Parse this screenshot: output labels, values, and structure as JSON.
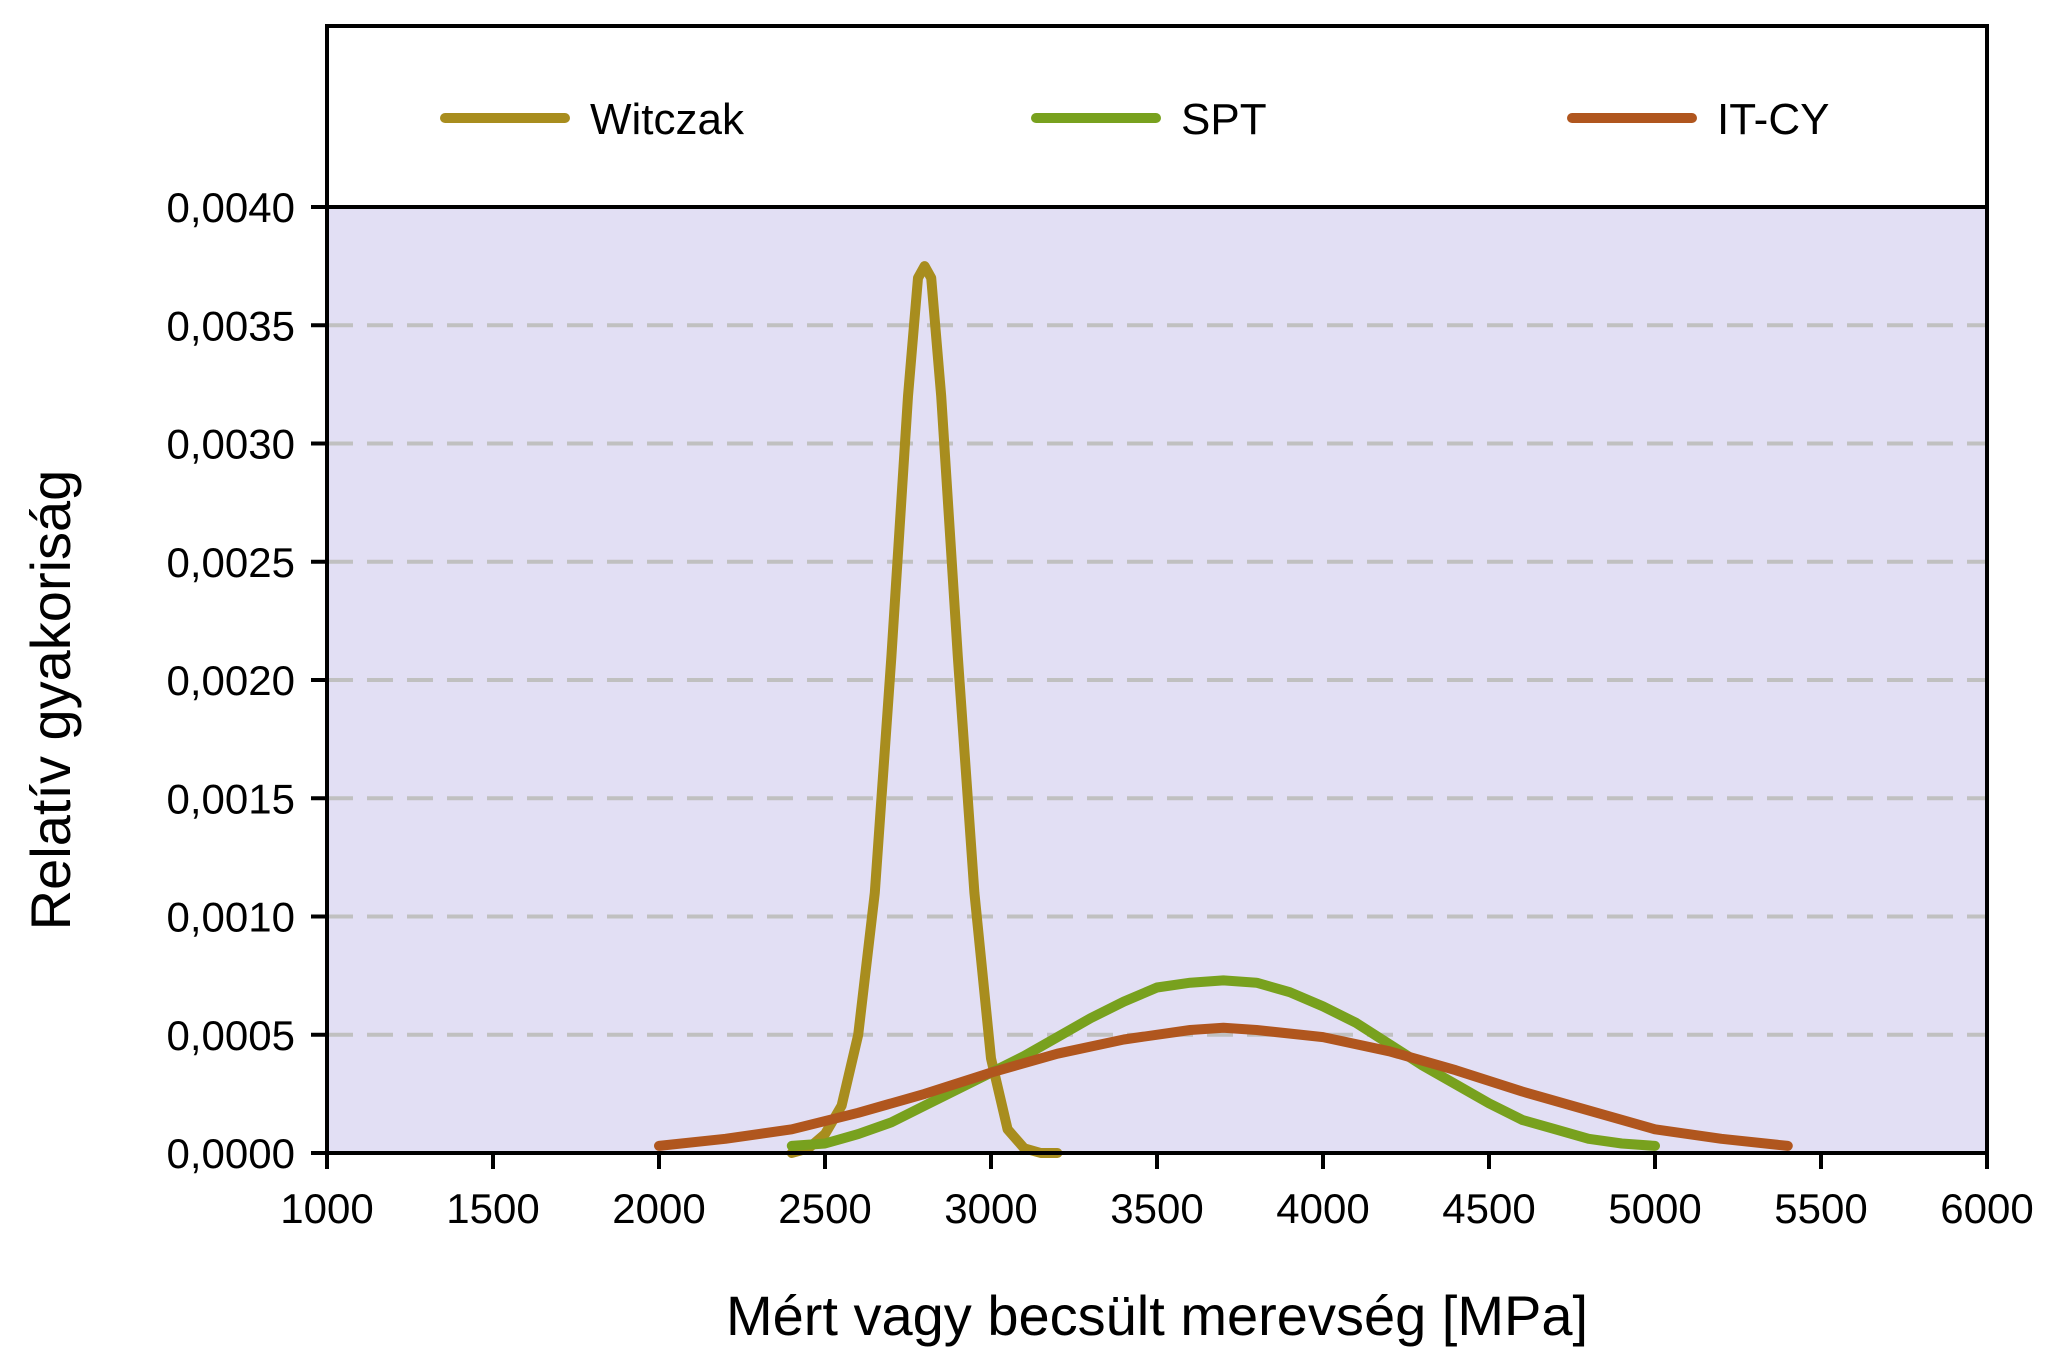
{
  "chart_data": {
    "type": "line",
    "title": "",
    "xlabel": "Mért vagy becsült merevség [MPa]",
    "ylabel": "Relatív gyakoriság",
    "xlim": [
      1000,
      6000
    ],
    "ylim": [
      0,
      0.004
    ],
    "xticks": [
      1000,
      1500,
      2000,
      2500,
      3000,
      3500,
      4000,
      4500,
      5000,
      5500,
      6000
    ],
    "xtick_labels": [
      "1000",
      "1500",
      "2000",
      "2500",
      "3000",
      "3500",
      "4000",
      "4500",
      "5000",
      "5500",
      "6000"
    ],
    "yticks": [
      0,
      0.0005,
      0.001,
      0.0015,
      0.002,
      0.0025,
      0.003,
      0.0035,
      0.004
    ],
    "ytick_labels": [
      "0,0000",
      "0,0005",
      "0,0010",
      "0,0015",
      "0,0020",
      "0,0025",
      "0,0030",
      "0,0035",
      "0,0040"
    ],
    "grid": "horizontal dashed",
    "plot_background": "#e2dff4",
    "gridline_color": "#c0c0c0",
    "legend_position": "top",
    "series": [
      {
        "name": "Witczak",
        "color": "#a88d1e",
        "x": [
          2400,
          2450,
          2500,
          2550,
          2600,
          2650,
          2700,
          2750,
          2780,
          2800,
          2820,
          2850,
          2900,
          2950,
          3000,
          3050,
          3100,
          3150,
          3200
        ],
        "y": [
          0.0,
          2e-05,
          8e-05,
          0.0002,
          0.0005,
          0.0011,
          0.0021,
          0.0032,
          0.0037,
          0.00375,
          0.0037,
          0.0032,
          0.0021,
          0.0011,
          0.0004,
          0.0001,
          2e-05,
          0.0,
          0.0
        ]
      },
      {
        "name": "SPT",
        "color": "#78a11e",
        "x": [
          2400,
          2500,
          2600,
          2700,
          2800,
          2900,
          3000,
          3100,
          3200,
          3300,
          3400,
          3500,
          3600,
          3700,
          3800,
          3900,
          4000,
          4100,
          4200,
          4300,
          4400,
          4500,
          4600,
          4700,
          4800,
          4900,
          5000
        ],
        "y": [
          3e-05,
          4e-05,
          8e-05,
          0.00013,
          0.0002,
          0.00027,
          0.00034,
          0.00041,
          0.00049,
          0.00057,
          0.00064,
          0.0007,
          0.00072,
          0.00073,
          0.00072,
          0.00068,
          0.00062,
          0.00055,
          0.00046,
          0.00037,
          0.00029,
          0.00021,
          0.00014,
          0.0001,
          6e-05,
          4e-05,
          3e-05
        ]
      },
      {
        "name": "IT-CY",
        "color": "#b0561e",
        "x": [
          2000,
          2200,
          2400,
          2600,
          2800,
          3000,
          3200,
          3400,
          3600,
          3700,
          3800,
          4000,
          4200,
          4400,
          4600,
          4800,
          5000,
          5200,
          5400
        ],
        "y": [
          3e-05,
          6e-05,
          0.0001,
          0.00017,
          0.00025,
          0.00034,
          0.00042,
          0.00048,
          0.00052,
          0.00053,
          0.00052,
          0.00049,
          0.00043,
          0.00035,
          0.00026,
          0.00018,
          0.0001,
          6e-05,
          3e-05
        ]
      }
    ]
  }
}
